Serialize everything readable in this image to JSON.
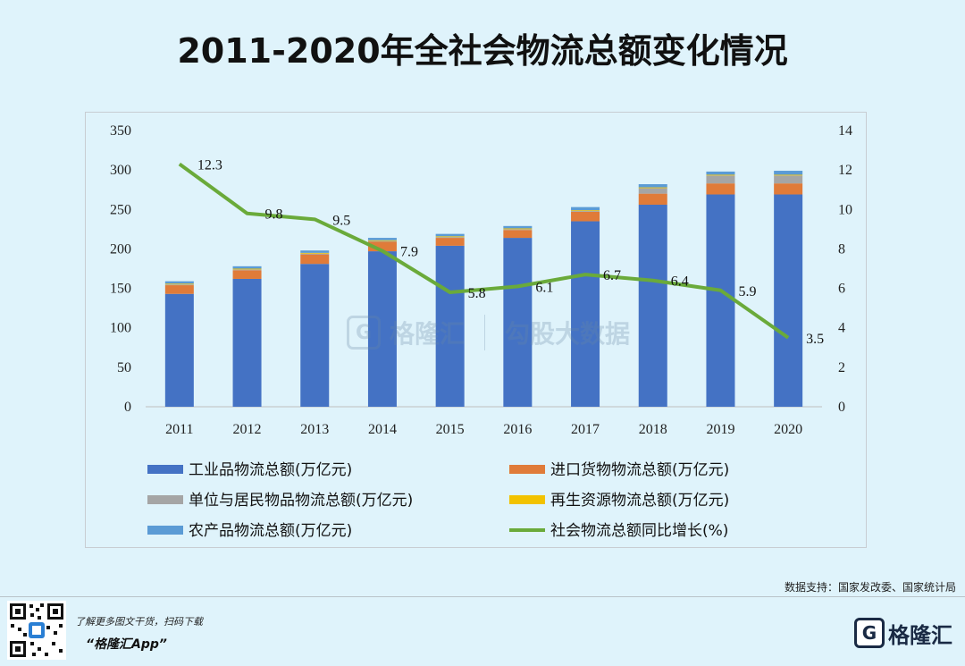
{
  "title": "2011-2020年全社会物流总额变化情况",
  "source": "数据支持：国家发改委、国家统计局",
  "promo": {
    "line1": "了解更多图文干货，扫码下载",
    "line2": "“格隆汇App”"
  },
  "brand": {
    "name": "格隆汇",
    "logo_letter": "G"
  },
  "watermark": {
    "left": "格隆汇",
    "right": "勾股大数据",
    "letter": "G"
  },
  "colors": {
    "industrial": "#4472c4",
    "import": "#e07b39",
    "unit": "#a5a5a5",
    "recycle": "#f2c200",
    "agri": "#5b9bd5",
    "growth": "#6aaa3a"
  },
  "chart_data": {
    "type": "bar",
    "title": "2011-2020年全社会物流总额变化情况",
    "categories": [
      "2011",
      "2012",
      "2013",
      "2014",
      "2015",
      "2016",
      "2017",
      "2018",
      "2019",
      "2020"
    ],
    "stacked": true,
    "ylim": [
      0,
      350
    ],
    "yticks": [
      0,
      50,
      100,
      150,
      200,
      250,
      300,
      350
    ],
    "y2lim": [
      0,
      14
    ],
    "y2ticks": [
      0,
      2,
      4,
      6,
      8,
      10,
      12,
      14
    ],
    "series": [
      {
        "name": "工业品物流总额(万亿元)",
        "type": "bar",
        "color_key": "industrial",
        "values": [
          143,
          162,
          181,
          197,
          204,
          214,
          235,
          256,
          269,
          269
        ]
      },
      {
        "name": "进口货物物流总额(万亿元)",
        "type": "bar",
        "color_key": "import",
        "values": [
          11,
          11,
          12,
          12,
          10,
          10,
          12,
          14,
          14,
          14
        ]
      },
      {
        "name": "单位与居民物品物流总额(万亿元)",
        "type": "bar",
        "color_key": "unit",
        "values": [
          1,
          1,
          1,
          1,
          1,
          1,
          1,
          7,
          10,
          10
        ]
      },
      {
        "name": "再生资源物流总额(万亿元)",
        "type": "bar",
        "color_key": "recycle",
        "values": [
          1,
          1,
          1,
          1,
          1,
          1,
          1,
          1,
          1,
          1
        ]
      },
      {
        "name": "农产品物流总额(万亿元)",
        "type": "bar",
        "color_key": "agri",
        "values": [
          3,
          3,
          3,
          3,
          3,
          3,
          4,
          4,
          4,
          5
        ]
      },
      {
        "name": "社会物流总额同比增长(%)",
        "type": "line",
        "axis": "right",
        "color_key": "growth",
        "values": [
          12.3,
          9.8,
          9.5,
          7.9,
          5.8,
          6.1,
          6.7,
          6.4,
          5.9,
          3.5
        ],
        "labels": [
          "12.3",
          "9.8",
          "9.5",
          "7.9",
          "5.8",
          "6.1",
          "6.7",
          "6.4",
          "5.9",
          "3.5"
        ]
      }
    ],
    "legend": [
      {
        "name": "工业品物流总额(万亿元)",
        "kind": "box",
        "color_key": "industrial"
      },
      {
        "name": "进口货物物流总额(万亿元)",
        "kind": "box",
        "color_key": "import"
      },
      {
        "name": "单位与居民物品物流总额(万亿元)",
        "kind": "box",
        "color_key": "unit"
      },
      {
        "name": "再生资源物流总额(万亿元)",
        "kind": "box",
        "color_key": "recycle"
      },
      {
        "name": "农产品物流总额(万亿元)",
        "kind": "box",
        "color_key": "agri"
      },
      {
        "name": "社会物流总额同比增长(%)",
        "kind": "line",
        "color_key": "growth"
      }
    ],
    "legend_position": "bottom"
  }
}
